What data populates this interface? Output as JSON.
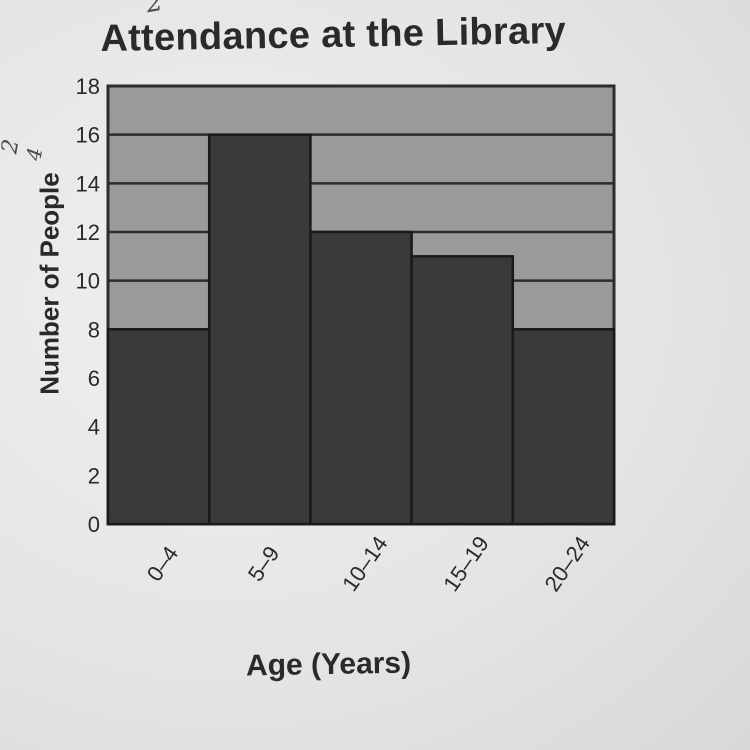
{
  "chart_data": {
    "type": "bar",
    "title": "Attendance at the Library",
    "xlabel": "Age (Years)",
    "ylabel": "Number of People",
    "categories": [
      "0–4",
      "5–9",
      "10–14",
      "15–19",
      "20–24"
    ],
    "values": [
      8,
      16,
      12,
      11,
      8
    ],
    "ylim": [
      0,
      18
    ],
    "yticks": [
      "0",
      "2",
      "4",
      "6",
      "8",
      "10",
      "12",
      "14",
      "16",
      "18"
    ],
    "grid": true,
    "colors": {
      "bar": "#3a3a3a",
      "plot_background": "#9a9a9a",
      "grid_line": "#2c2c2c"
    }
  },
  "annotations": {
    "handwritten_marks": [
      "2",
      "2",
      "4"
    ]
  }
}
